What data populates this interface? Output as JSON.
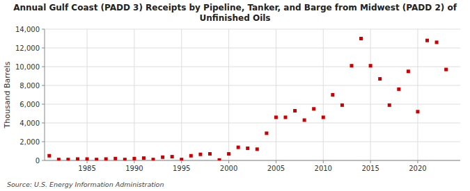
{
  "chart_data": {
    "type": "scatter",
    "title": "Annual Gulf Coast (PADD 3) Receipts by Pipeline, Tanker, and Barge from Midwest (PADD 2) of\nUnfinished Oils",
    "y_label": "Thousand Barrels",
    "annotations": [
      "Source: U.S. Energy Information Administration"
    ],
    "x": [
      1981,
      1982,
      1983,
      1984,
      1985,
      1986,
      1987,
      1988,
      1989,
      1990,
      1991,
      1992,
      1993,
      1994,
      1995,
      1996,
      1997,
      1998,
      1999,
      2000,
      2001,
      2002,
      2003,
      2004,
      2005,
      2006,
      2007,
      2008,
      2009,
      2010,
      2011,
      2012,
      2013,
      2014,
      2015,
      2016,
      2017,
      2018,
      2019,
      2020,
      2021,
      2022,
      2023
    ],
    "values": [
      500,
      100,
      100,
      150,
      150,
      100,
      150,
      200,
      100,
      200,
      250,
      100,
      350,
      400,
      100,
      500,
      650,
      700,
      50,
      700,
      1400,
      1300,
      1200,
      2900,
      4600,
      4600,
      5300,
      4300,
      5500,
      4600,
      7000,
      5900,
      10100,
      13000,
      10100,
      8700,
      5900,
      7600,
      9500,
      5200,
      12800,
      12600,
      9700
    ],
    "color": "#cc0000",
    "marker": "square",
    "xlim": [
      1980.5,
      2024.5
    ],
    "ylim": [
      0,
      14000
    ],
    "xticks": [
      1985,
      1990,
      1995,
      2000,
      2005,
      2010,
      2015,
      2020
    ],
    "yticks": [
      0,
      {
        "value": 2000,
        "label": "2,000"
      },
      {
        "value": 4000,
        "label": "4,000"
      },
      {
        "value": 6000,
        "label": "6,000"
      },
      {
        "value": 8000,
        "label": "8,000"
      },
      {
        "value": 10000,
        "label": "10,000"
      },
      {
        "value": 12000,
        "label": "12,000"
      },
      {
        "value": 14000,
        "label": "14,000"
      }
    ],
    "grid": true
  }
}
